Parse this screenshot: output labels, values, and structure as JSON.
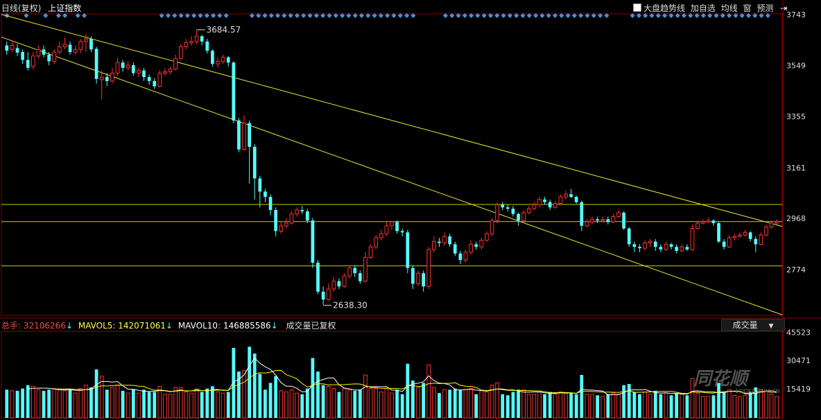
{
  "header": {
    "period": "日线(复权)",
    "index_name": "上证指数",
    "toolbar": [
      "大盘趋势线",
      "加自选",
      "均线",
      "窗",
      "预测"
    ]
  },
  "chart_data": [
    {
      "type": "candlestick",
      "ylim": [
        2600,
        3745
      ],
      "yticks": [
        3743,
        3549,
        3355,
        3161,
        2968,
        2774
      ],
      "high_annotation": {
        "label": "3684.57",
        "value": 3684.57
      },
      "low_annotation": {
        "label": "2638.30",
        "value": 2638.3
      },
      "horizontal_lines": [
        3021,
        2956,
        2788
      ],
      "trendlines": [
        {
          "from": [
            0,
            3743
          ],
          "to": [
            1,
            2938
          ]
        },
        {
          "from": [
            0,
            3657
          ],
          "to": [
            1,
            2602
          ]
        }
      ],
      "values": [
        [
          3625,
          3605,
          3640,
          3590
        ],
        [
          3610,
          3625,
          3645,
          3600
        ],
        [
          3615,
          3598,
          3630,
          3585
        ],
        [
          3600,
          3570,
          3610,
          3555
        ],
        [
          3570,
          3540,
          3600,
          3530
        ],
        [
          3545,
          3585,
          3600,
          3535
        ],
        [
          3585,
          3610,
          3625,
          3575
        ],
        [
          3610,
          3590,
          3625,
          3580
        ],
        [
          3590,
          3565,
          3600,
          3550
        ],
        [
          3565,
          3600,
          3610,
          3555
        ],
        [
          3600,
          3620,
          3640,
          3590
        ],
        [
          3620,
          3630,
          3655,
          3610
        ],
        [
          3628,
          3600,
          3640,
          3590
        ],
        [
          3600,
          3610,
          3625,
          3590
        ],
        [
          3610,
          3640,
          3650,
          3595
        ],
        [
          3640,
          3650,
          3670,
          3600
        ],
        [
          3650,
          3610,
          3660,
          3600
        ],
        [
          3612,
          3498,
          3620,
          3480
        ],
        [
          3495,
          3505,
          3530,
          3420
        ],
        [
          3505,
          3490,
          3520,
          3470
        ],
        [
          3490,
          3520,
          3540,
          3480
        ],
        [
          3520,
          3560,
          3580,
          3510
        ],
        [
          3560,
          3540,
          3570,
          3525
        ],
        [
          3540,
          3550,
          3565,
          3530
        ],
        [
          3550,
          3520,
          3560,
          3510
        ],
        [
          3520,
          3530,
          3540,
          3505
        ],
        [
          3530,
          3505,
          3540,
          3490
        ],
        [
          3505,
          3490,
          3515,
          3475
        ],
        [
          3490,
          3470,
          3500,
          3460
        ],
        [
          3470,
          3520,
          3530,
          3465
        ],
        [
          3520,
          3525,
          3540,
          3510
        ],
        [
          3525,
          3535,
          3545,
          3515
        ],
        [
          3535,
          3575,
          3590,
          3530
        ],
        [
          3575,
          3620,
          3630,
          3570
        ],
        [
          3620,
          3635,
          3650,
          3610
        ],
        [
          3635,
          3640,
          3660,
          3625
        ],
        [
          3640,
          3660,
          3684,
          3630
        ],
        [
          3660,
          3640,
          3665,
          3625
        ],
        [
          3640,
          3605,
          3650,
          3595
        ],
        [
          3605,
          3555,
          3610,
          3545
        ],
        [
          3555,
          3565,
          3580,
          3540
        ],
        [
          3565,
          3580,
          3590,
          3555
        ],
        [
          3580,
          3560,
          3585,
          3545
        ],
        [
          3560,
          3340,
          3565,
          3330
        ],
        [
          3340,
          3230,
          3350,
          3220
        ],
        [
          3230,
          3330,
          3360,
          3225
        ],
        [
          3330,
          3240,
          3340,
          3100
        ],
        [
          3240,
          3120,
          3250,
          3040
        ],
        [
          3120,
          3070,
          3130,
          3010
        ],
        [
          3070,
          3050,
          3080,
          3030
        ],
        [
          3050,
          3000,
          3060,
          2980
        ],
        [
          3000,
          2920,
          3010,
          2900
        ],
        [
          2920,
          2940,
          2955,
          2910
        ],
        [
          2940,
          2950,
          2970,
          2930
        ],
        [
          2950,
          2985,
          2995,
          2945
        ],
        [
          2985,
          3000,
          3010,
          2975
        ],
        [
          3000,
          2995,
          3015,
          2985
        ],
        [
          2995,
          2960,
          3005,
          2950
        ],
        [
          2960,
          2800,
          2970,
          2780
        ],
        [
          2800,
          2690,
          2810,
          2680
        ],
        [
          2690,
          2660,
          2710,
          2640
        ],
        [
          2660,
          2700,
          2720,
          2655
        ],
        [
          2700,
          2730,
          2745,
          2690
        ],
        [
          2730,
          2710,
          2740,
          2700
        ],
        [
          2710,
          2750,
          2760,
          2705
        ],
        [
          2750,
          2780,
          2790,
          2740
        ],
        [
          2780,
          2760,
          2790,
          2745
        ],
        [
          2760,
          2730,
          2770,
          2720
        ],
        [
          2730,
          2820,
          2840,
          2725
        ],
        [
          2820,
          2860,
          2870,
          2815
        ],
        [
          2860,
          2895,
          2905,
          2850
        ],
        [
          2895,
          2910,
          2925,
          2885
        ],
        [
          2910,
          2940,
          2955,
          2900
        ],
        [
          2940,
          2955,
          2960,
          2925
        ],
        [
          2955,
          2920,
          2960,
          2910
        ],
        [
          2920,
          2915,
          2930,
          2900
        ],
        [
          2915,
          2780,
          2925,
          2760
        ],
        [
          2780,
          2720,
          2790,
          2700
        ],
        [
          2720,
          2760,
          2770,
          2710
        ],
        [
          2760,
          2710,
          2770,
          2690
        ],
        [
          2710,
          2850,
          2860,
          2700
        ],
        [
          2850,
          2880,
          2900,
          2840
        ],
        [
          2880,
          2875,
          2895,
          2860
        ],
        [
          2875,
          2900,
          2915,
          2865
        ],
        [
          2900,
          2870,
          2910,
          2860
        ],
        [
          2870,
          2835,
          2880,
          2825
        ],
        [
          2835,
          2810,
          2845,
          2795
        ],
        [
          2810,
          2840,
          2850,
          2800
        ],
        [
          2840,
          2870,
          2885,
          2830
        ],
        [
          2870,
          2860,
          2880,
          2850
        ],
        [
          2860,
          2885,
          2895,
          2850
        ],
        [
          2885,
          2910,
          2920,
          2880
        ],
        [
          2910,
          2960,
          2970,
          2900
        ],
        [
          2960,
          3020,
          3030,
          2950
        ],
        [
          3020,
          3010,
          3030,
          3000
        ],
        [
          3010,
          3005,
          3020,
          2995
        ],
        [
          3005,
          2985,
          3015,
          2975
        ],
        [
          2985,
          2960,
          2990,
          2940
        ],
        [
          2960,
          2990,
          3000,
          2950
        ],
        [
          2990,
          3005,
          3015,
          2985
        ],
        [
          3005,
          3020,
          3030,
          3000
        ],
        [
          3020,
          3040,
          3050,
          3010
        ],
        [
          3040,
          3030,
          3050,
          3020
        ],
        [
          3030,
          3010,
          3040,
          3000
        ],
        [
          3010,
          3025,
          3035,
          3005
        ],
        [
          3025,
          3050,
          3060,
          3020
        ],
        [
          3050,
          3060,
          3075,
          3040
        ],
        [
          3060,
          3050,
          3080,
          3045
        ],
        [
          3050,
          3030,
          3055,
          3025
        ],
        [
          3030,
          2940,
          3035,
          2920
        ],
        [
          2940,
          2955,
          2965,
          2935
        ],
        [
          2955,
          2965,
          2975,
          2945
        ],
        [
          2965,
          2960,
          2975,
          2950
        ],
        [
          2960,
          2965,
          2975,
          2955
        ],
        [
          2965,
          2955,
          2975,
          2945
        ],
        [
          2955,
          2975,
          2985,
          2950
        ],
        [
          2975,
          2990,
          3000,
          2970
        ],
        [
          2990,
          2930,
          2995,
          2925
        ],
        [
          2930,
          2870,
          2935,
          2860
        ],
        [
          2870,
          2860,
          2880,
          2840
        ],
        [
          2860,
          2855,
          2870,
          2840
        ],
        [
          2855,
          2875,
          2885,
          2845
        ],
        [
          2875,
          2880,
          2890,
          2860
        ],
        [
          2880,
          2860,
          2890,
          2845
        ],
        [
          2860,
          2850,
          2870,
          2840
        ],
        [
          2850,
          2870,
          2880,
          2845
        ],
        [
          2870,
          2860,
          2875,
          2850
        ],
        [
          2860,
          2845,
          2870,
          2835
        ],
        [
          2845,
          2860,
          2870,
          2840
        ],
        [
          2860,
          2850,
          2870,
          2845
        ],
        [
          2850,
          2930,
          2945,
          2845
        ],
        [
          2930,
          2950,
          2960,
          2925
        ],
        [
          2950,
          2955,
          2965,
          2945
        ],
        [
          2955,
          2960,
          2970,
          2950
        ],
        [
          2960,
          2950,
          2965,
          2940
        ],
        [
          2950,
          2880,
          2955,
          2875
        ],
        [
          2880,
          2860,
          2890,
          2850
        ],
        [
          2860,
          2895,
          2905,
          2855
        ],
        [
          2895,
          2900,
          2910,
          2885
        ],
        [
          2900,
          2905,
          2915,
          2895
        ],
        [
          2905,
          2915,
          2925,
          2900
        ],
        [
          2915,
          2890,
          2920,
          2880
        ],
        [
          2890,
          2870,
          2900,
          2840
        ],
        [
          2870,
          2905,
          2915,
          2865
        ],
        [
          2905,
          2935,
          2945,
          2900
        ],
        [
          2935,
          2950,
          2960,
          2930
        ],
        [
          2950,
          2955,
          2965,
          2945
        ]
      ]
    },
    {
      "type": "bar",
      "title": "成交量已复权",
      "ylim": [
        0,
        46000
      ],
      "yticks": [
        45523,
        30471,
        15419
      ],
      "legend": [
        {
          "name": "总手",
          "value": "32106266"
        },
        {
          "name": "MAVOL5",
          "value": "142071061"
        },
        {
          "name": "MAVOL10",
          "value": "146885586"
        }
      ],
      "selector_label": "成交量"
    }
  ],
  "watermark": {
    "text": "同花顺",
    "sub": "10JQKA.COM.CN"
  },
  "colors": {
    "up": "#ff3232",
    "down": "#54ffff",
    "grid": "#cccc00",
    "trend": "#e6e632",
    "ma5": "#ffffff",
    "ma10": "#ffff00",
    "marker": "#3c96dc"
  }
}
